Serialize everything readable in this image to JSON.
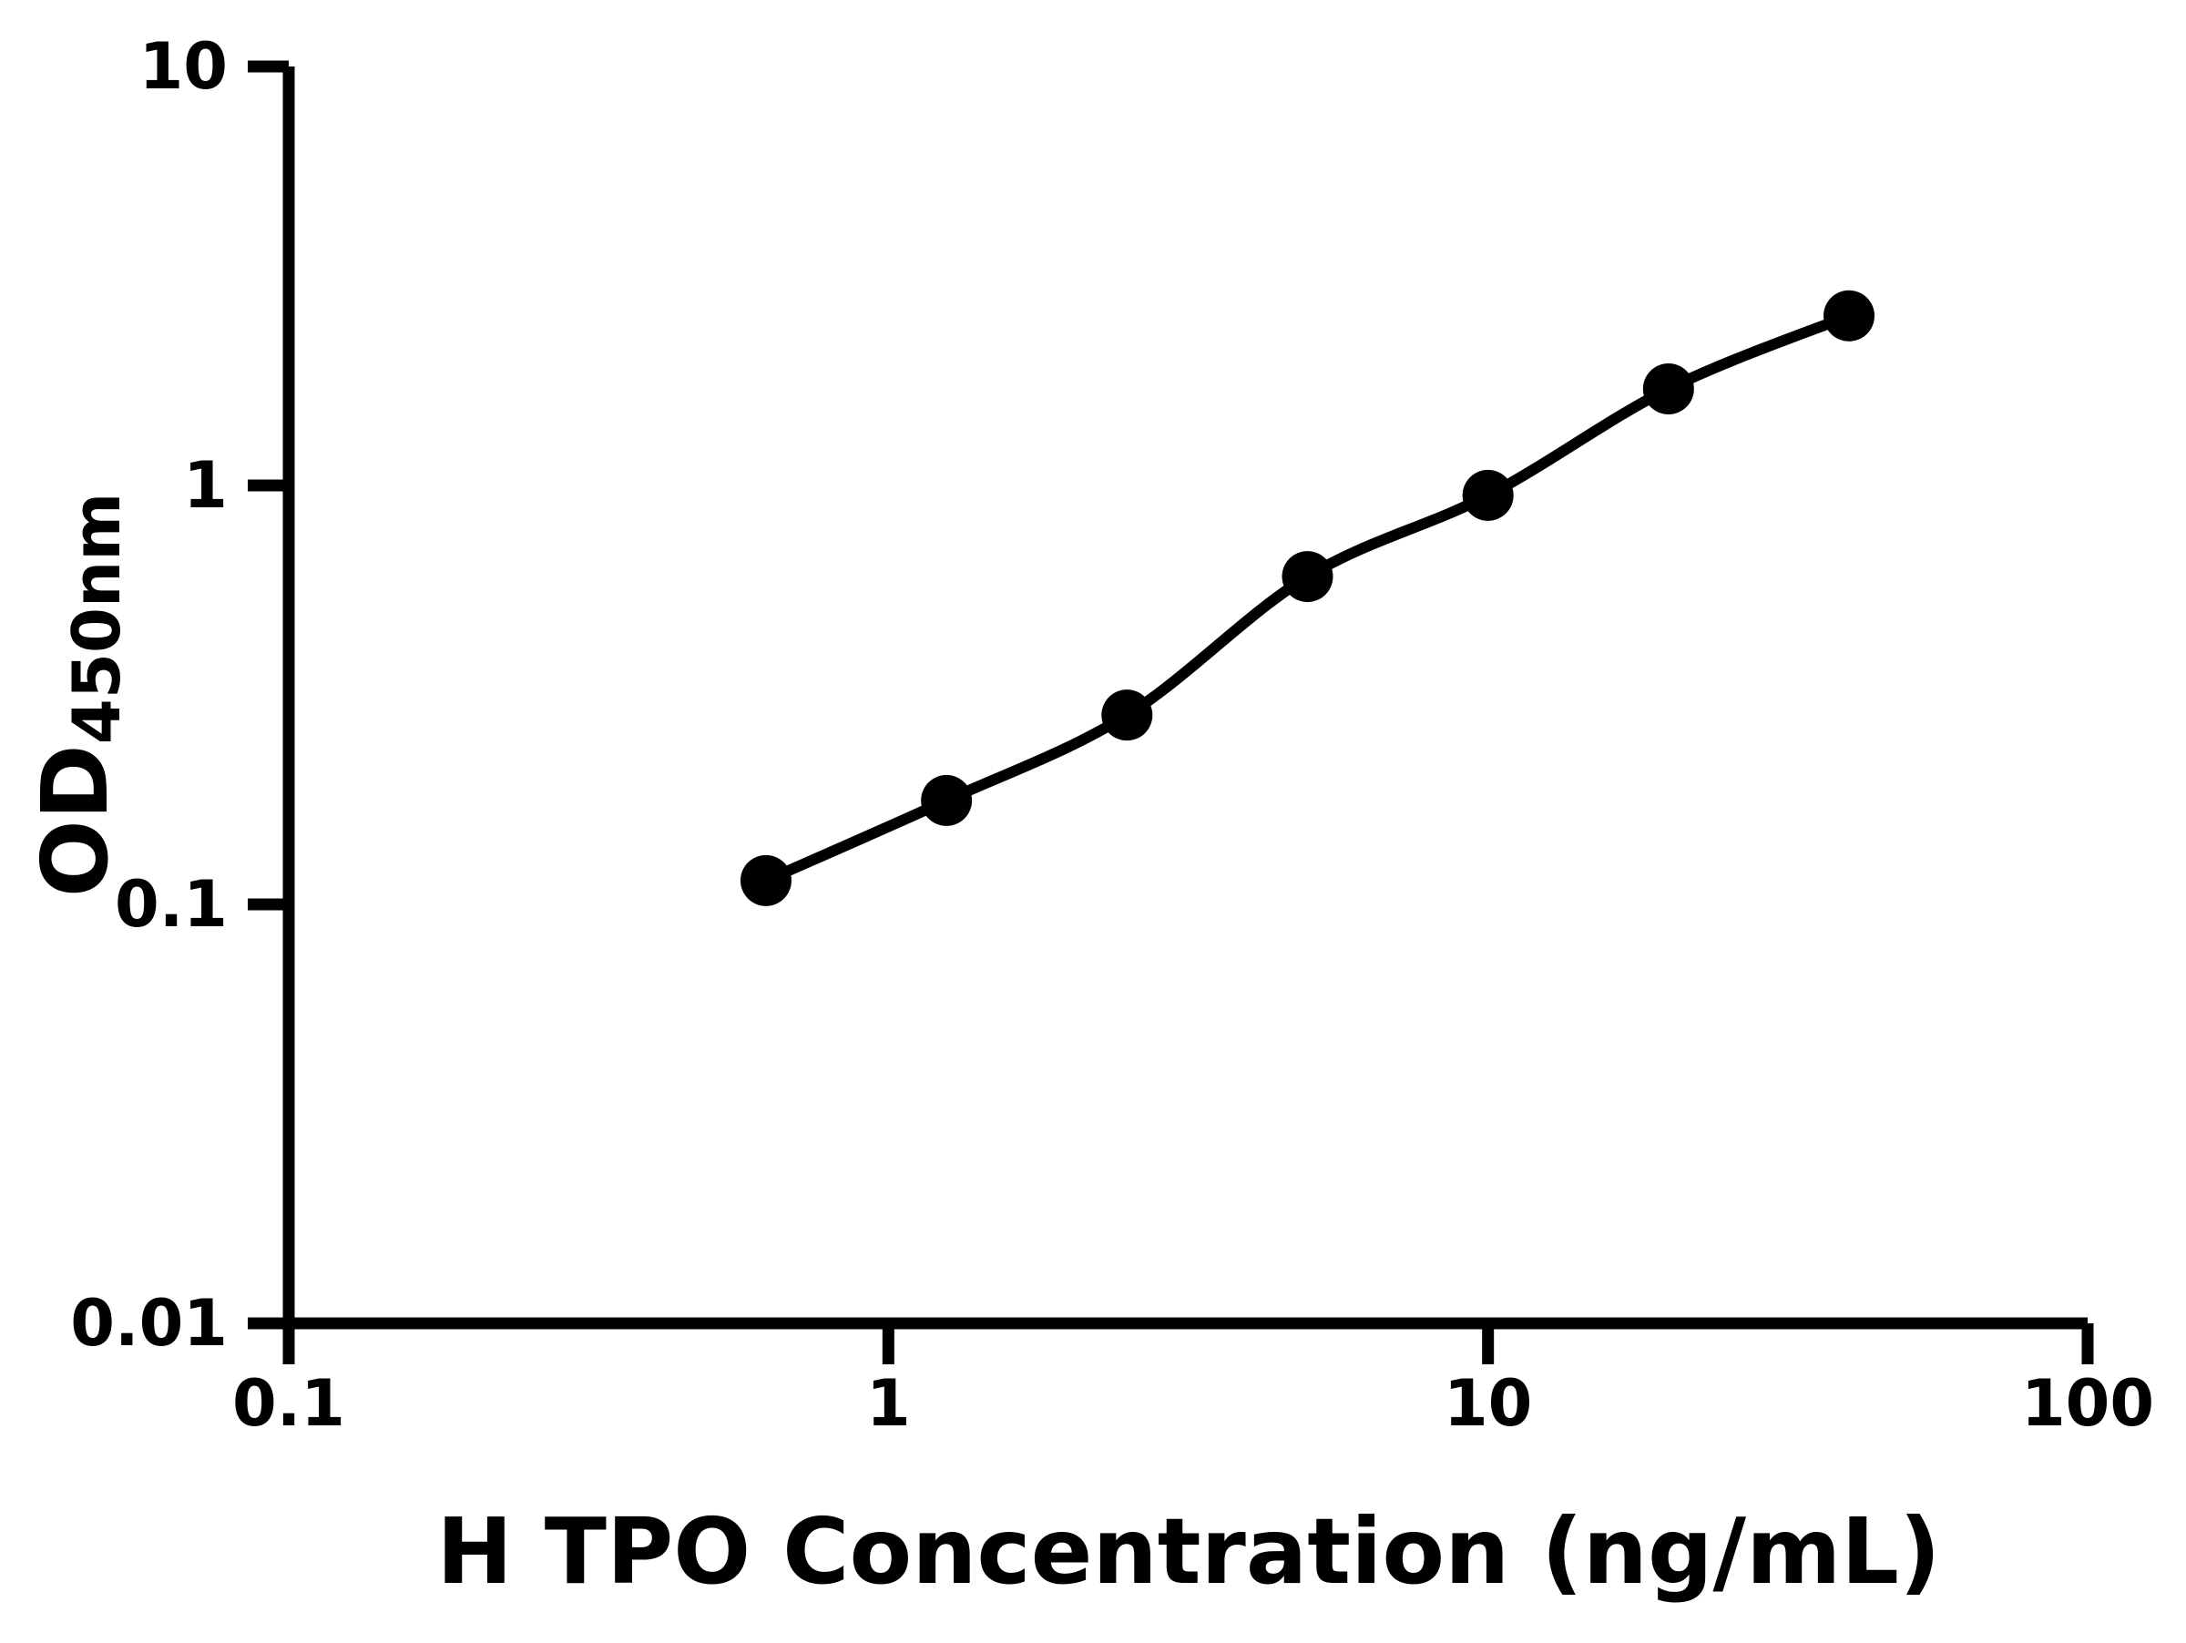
{
  "figure": {
    "background_color": "#ffffff",
    "ink_color": "#000000",
    "title": "",
    "legend": false,
    "grid": false
  },
  "chart_data": {
    "type": "scatter",
    "x_scale": "log10",
    "y_scale": "log10",
    "xlim": [
      0.1,
      100
    ],
    "ylim": [
      0.01,
      10
    ],
    "xlabel": "H TPO Concentration (ng/mL)",
    "ylabel_main": "OD",
    "ylabel_sub": "450nm",
    "x_ticks": [
      {
        "value": 0.1,
        "label": "0.1"
      },
      {
        "value": 1,
        "label": "1"
      },
      {
        "value": 10,
        "label": "10"
      },
      {
        "value": 100,
        "label": "100"
      }
    ],
    "y_ticks": [
      {
        "value": 0.01,
        "label": "0.01"
      },
      {
        "value": 0.1,
        "label": "0.1"
      },
      {
        "value": 1,
        "label": "1"
      },
      {
        "value": 10,
        "label": "10"
      }
    ],
    "series": [
      {
        "marker": "filled-circle",
        "line": "smooth-curve",
        "color": "#000000",
        "points": [
          {
            "x": 0.625,
            "y": 0.114
          },
          {
            "x": 1.25,
            "y": 0.177
          },
          {
            "x": 2.5,
            "y": 0.283
          },
          {
            "x": 5,
            "y": 0.606
          },
          {
            "x": 10,
            "y": 0.947
          },
          {
            "x": 20,
            "y": 1.7
          },
          {
            "x": 40,
            "y": 2.54
          }
        ]
      }
    ]
  }
}
